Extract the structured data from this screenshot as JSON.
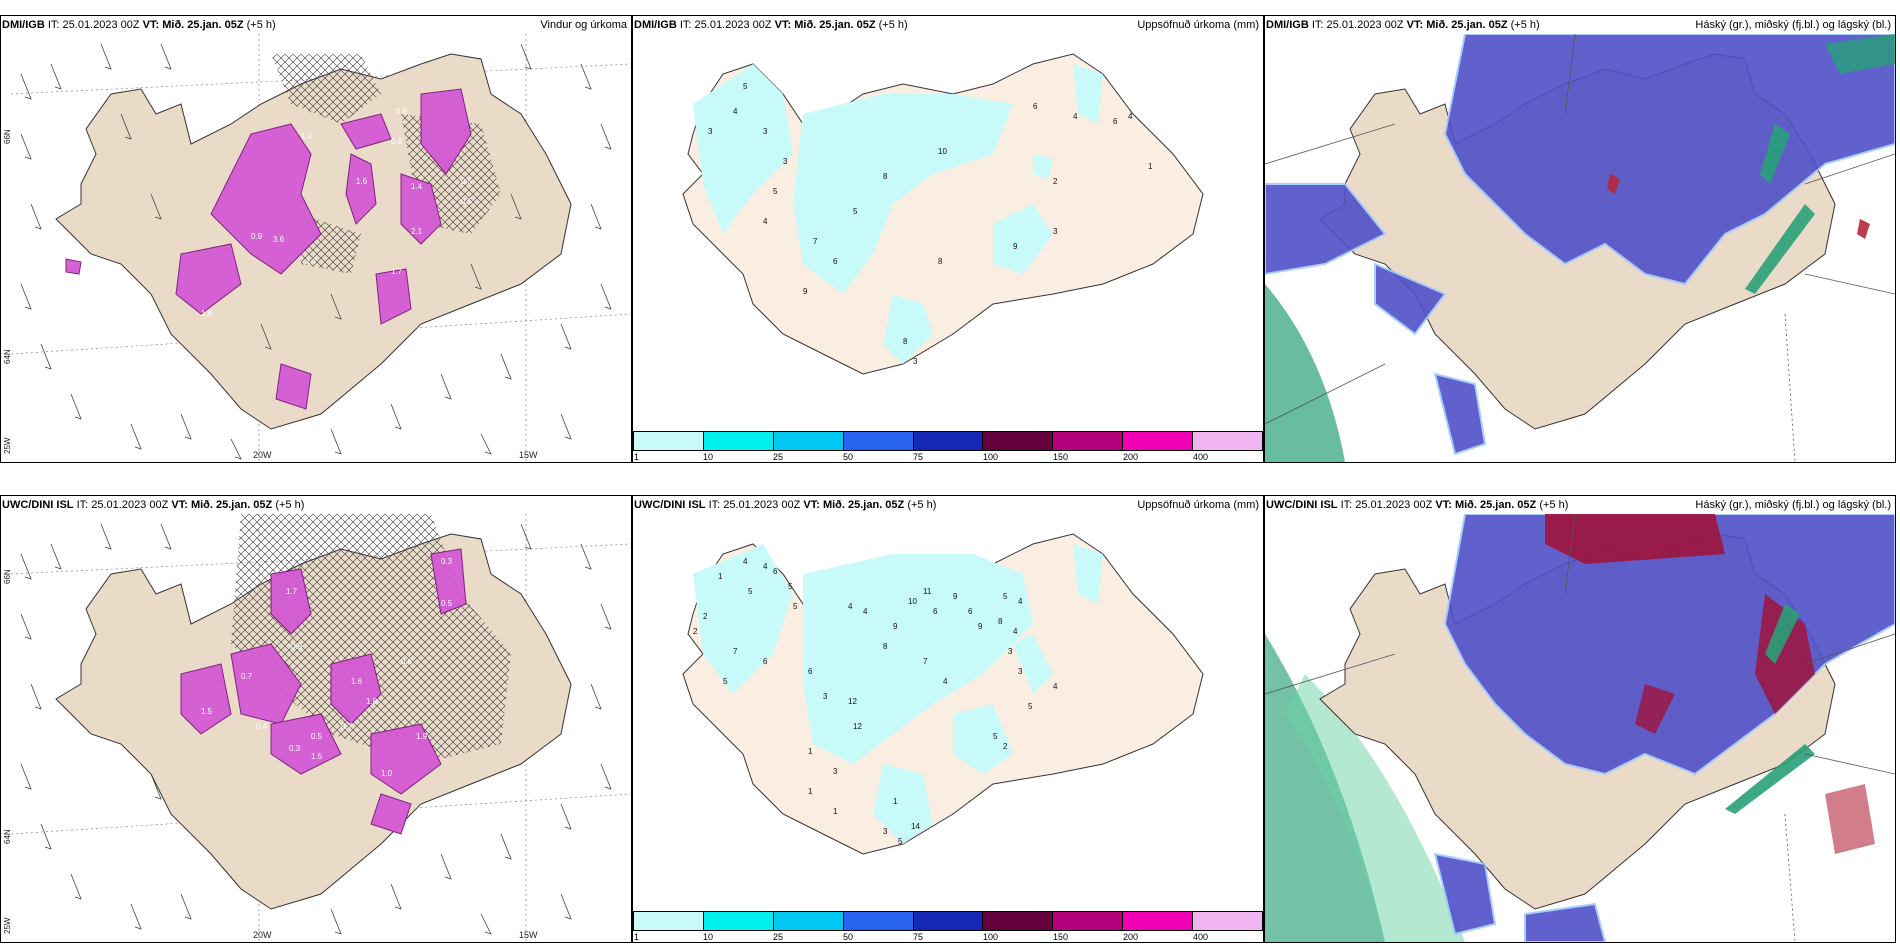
{
  "rows": [
    {
      "model": "DMI/IGB",
      "it_label": "IT:",
      "it_value": "25.01.2023 00Z",
      "vt_label": "VT:",
      "vt_value": "Mið. 25.jan. 05Z",
      "lead": "(+5 h)",
      "titles": [
        "Vindur og úrkoma",
        "Uppsöfnuð úrkoma (mm)",
        "Háský (gr.), miðský (fj.bl.) og lágský (bl.)"
      ],
      "precip_numbers": [
        "5",
        "3",
        "4",
        "3",
        "3",
        "5",
        "5",
        "4",
        "4",
        "6",
        "7",
        "6",
        "9",
        "10",
        "8",
        "8",
        "2",
        "3",
        "1",
        "4",
        "6",
        "9",
        "8",
        "3"
      ],
      "wind_numbers": [
        "1.4",
        "1.6",
        "2.1",
        "0.9",
        "3.6",
        "0.8",
        "1.7",
        "0.5",
        "1.6",
        "0.6",
        "1.4",
        "0.5",
        "1.7"
      ]
    },
    {
      "model": "UWC/DINI ISL",
      "it_label": "IT:",
      "it_value": "25.01.2023 00Z",
      "vt_label": "VT:",
      "vt_value": "Mið. 25.jan. 05Z",
      "lead": "(+5 h)",
      "titles": [
        "Uppsöfnuð úrkoma (mm)",
        "Háský (gr.), miðský (fj.bl.) og lágský (bl.)"
      ],
      "precip_numbers": [
        "4",
        "4",
        "6",
        "5",
        "1",
        "5",
        "2",
        "2",
        "5",
        "7",
        "6",
        "5",
        "6",
        "4",
        "4",
        "3",
        "12",
        "12",
        "11",
        "9",
        "6",
        "10",
        "9",
        "8",
        "7",
        "6",
        "9",
        "8",
        "4",
        "5",
        "4",
        "3",
        "3",
        "4",
        "5",
        "2",
        "5",
        "4",
        "3",
        "1",
        "1",
        "1",
        "1",
        "3",
        "5",
        "14"
      ],
      "wind_numbers": [
        "0.3",
        "1.7",
        "0.9",
        "1.6",
        "0.6",
        "1.8",
        "0.7",
        "0.5",
        "0.4",
        "0.3",
        "1.5",
        "1.9",
        "1.0",
        "0.5",
        "1.5",
        "0.7"
      ]
    }
  ],
  "axis_labels": {
    "lon": [
      "20W",
      "15W"
    ],
    "lat": [
      "66N",
      "64N",
      "25W"
    ]
  },
  "colorbar": {
    "colors": [
      "#c8fafa",
      "#00f0f0",
      "#00c8f0",
      "#2864f0",
      "#1428b4",
      "#64003c",
      "#b4007a",
      "#f000b4",
      "#f0b4f0"
    ],
    "labels": [
      "1",
      "10",
      "25",
      "50",
      "75",
      "100",
      "150",
      "200",
      "400"
    ]
  },
  "colors": {
    "land": "#f2e4d6",
    "land_beige_wind": "#eadbc8",
    "precip_light": "#c8fafa",
    "magenta": "#d45ad4",
    "cloud_high": "#5050c8",
    "cloud_mid_red": "#b4283c",
    "cloud_low_green": "#28a078"
  }
}
